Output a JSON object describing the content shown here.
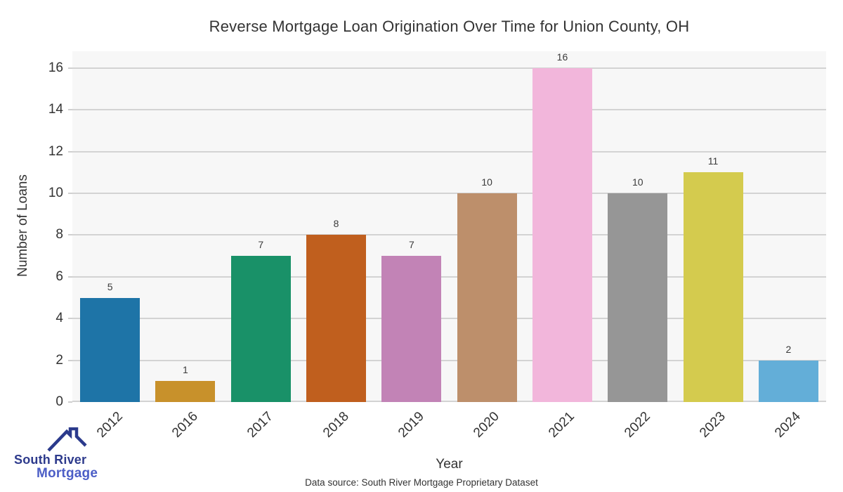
{
  "page": {
    "background": "#ffffff",
    "text_color": "#333333"
  },
  "chart_data": {
    "type": "bar",
    "title": "Reverse Mortgage Loan Origination Over Time for Union County, OH",
    "xlabel": "Year",
    "ylabel": "Number of Loans",
    "categories": [
      "2012",
      "2016",
      "2017",
      "2018",
      "2019",
      "2020",
      "2021",
      "2022",
      "2023",
      "2024"
    ],
    "values": [
      5,
      1,
      7,
      8,
      7,
      10,
      16,
      10,
      11,
      2
    ],
    "bar_colors": [
      "#1e74a7",
      "#c8912b",
      "#199168",
      "#c05f1e",
      "#c283b6",
      "#bd8f6b",
      "#f2b6db",
      "#969696",
      "#d4cb4e",
      "#63aed8"
    ],
    "ylim": [
      0,
      16
    ],
    "yticks": [
      0,
      2,
      4,
      6,
      8,
      10,
      12,
      14,
      16
    ],
    "grid": true,
    "legend": "none",
    "plot_background": "#f7f7f7",
    "grid_color": "#d3d3d3",
    "value_labels_shown": true,
    "x_label_rotation_deg": 45
  },
  "footer": {
    "source": "Data source: South River Mortgage Proprietary Dataset"
  },
  "logo": {
    "line1": "South River",
    "line2": "Mortgage",
    "line1_color": "#2d3a8c",
    "line2_color": "#4c5ec6",
    "roof_color": "#2b3a8c",
    "roof_icon": "house-roof-with-chimney-icon"
  }
}
